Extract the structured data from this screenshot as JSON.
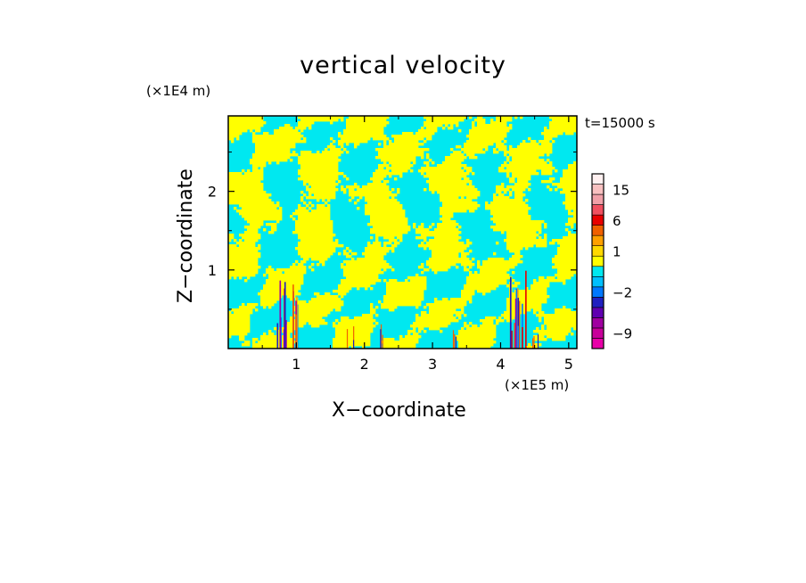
{
  "chart_data": {
    "type": "heatmap",
    "title": "vertical velocity",
    "xlabel": "X−coordinate",
    "ylabel": "Z−coordinate",
    "x_unit": "(×1E5 m)",
    "y_unit": "(×1E4 m)",
    "time_label": "t=15000 s",
    "xlim": [
      0,
      5.12
    ],
    "ylim": [
      0,
      2.96
    ],
    "x_ticks": [
      1,
      2,
      3,
      4,
      5
    ],
    "x_tick_labels": [
      "1",
      "2",
      "3",
      "4",
      "5"
    ],
    "y_ticks": [
      1,
      2
    ],
    "y_tick_labels": [
      "1",
      "2"
    ],
    "colorbar": {
      "tick_labels": [
        "15",
        "6",
        "1",
        "−2",
        "−9"
      ],
      "levels": [
        {
          "value": -12,
          "color": "#e800a8"
        },
        {
          "value": -9,
          "color": "#c8009a"
        },
        {
          "value": -6,
          "color": "#a000a0"
        },
        {
          "value": -4,
          "color": "#6000b0"
        },
        {
          "value": -3,
          "color": "#2020c0"
        },
        {
          "value": -2,
          "color": "#0078ff"
        },
        {
          "value": -1,
          "color": "#00c0ff"
        },
        {
          "value": 0,
          "color": "#00e8f0"
        },
        {
          "value": 0.5,
          "color": "#ffff00"
        },
        {
          "value": 1,
          "color": "#ffd800"
        },
        {
          "value": 2,
          "color": "#ffa000"
        },
        {
          "value": 4,
          "color": "#f06000"
        },
        {
          "value": 6,
          "color": "#e80000"
        },
        {
          "value": 9,
          "color": "#f05060"
        },
        {
          "value": 12,
          "color": "#f0a0a8"
        },
        {
          "value": 15,
          "color": "#f8c0c0"
        },
        {
          "value": 20,
          "color": "#fff0f0"
        }
      ]
    },
    "field_colors": {
      "negative": "#00e8f0",
      "positive": "#ffff00"
    },
    "strong_updrafts_x": [
      0.87,
      4.22
    ],
    "grid": false
  }
}
